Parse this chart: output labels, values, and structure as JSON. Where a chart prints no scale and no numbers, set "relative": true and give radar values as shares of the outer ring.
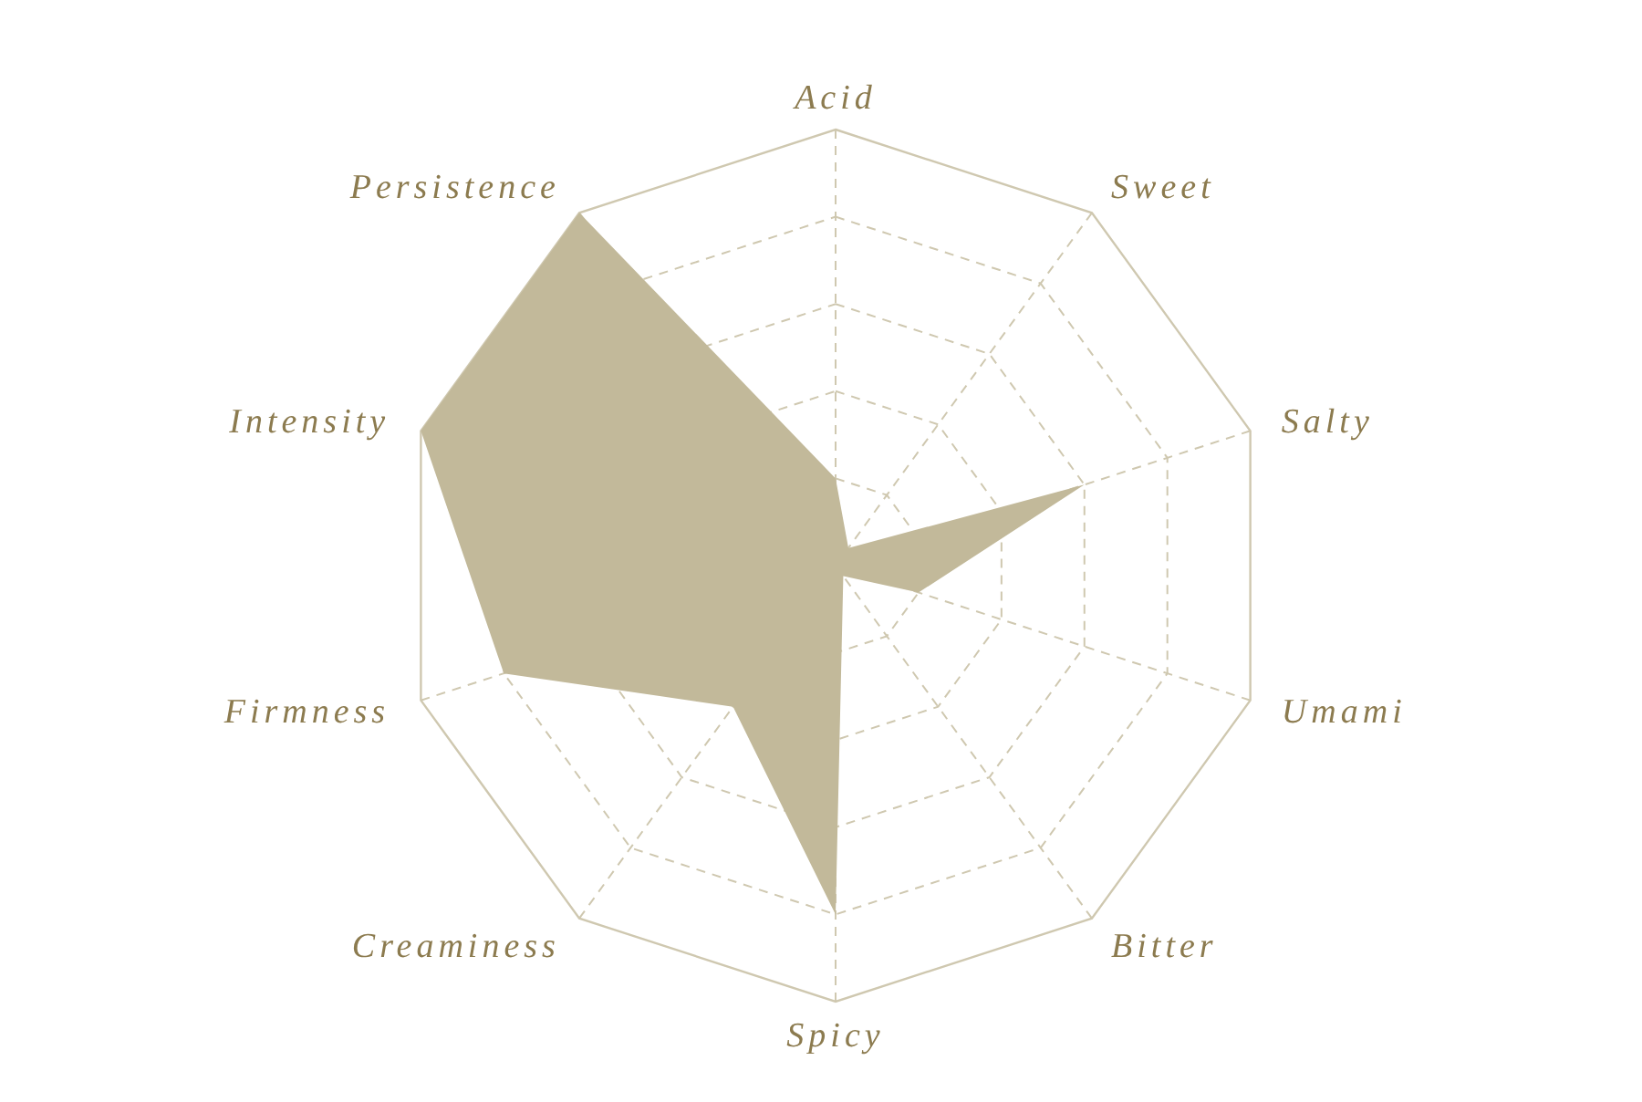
{
  "chart_data": {
    "type": "radar",
    "relative": true,
    "categories": [
      "Acid",
      "Sweet",
      "Salty",
      "Umami",
      "Bitter",
      "Spicy",
      "Creaminess",
      "Firmness",
      "Intensity",
      "Persistence"
    ],
    "series": [
      {
        "color": "#c2b99a",
        "values": [
          0.2,
          0.05,
          0.6,
          0.2,
          0.03,
          0.8,
          0.4,
          0.8,
          1,
          1
        ]
      }
    ],
    "grid": true
  }
}
